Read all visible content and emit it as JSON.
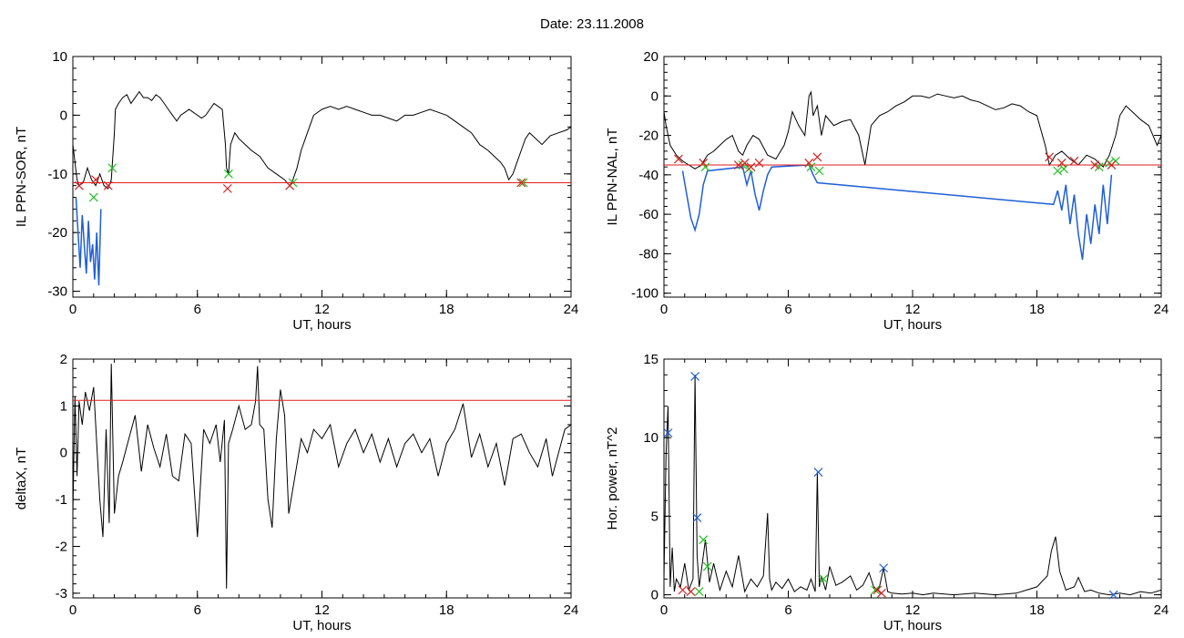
{
  "figure": {
    "title": "Date:  23.11.2008"
  },
  "chart_data": [
    {
      "type": "line",
      "id": "il-sor",
      "ylabel": "IL PPN-SOR, nT",
      "xlabel": "UT, hours",
      "xlim": [
        0,
        24
      ],
      "ylim": [
        -31,
        10
      ],
      "xticks": [
        0,
        6,
        12,
        18,
        24
      ],
      "yticks": [
        -30,
        -20,
        -10,
        0,
        10
      ],
      "threshold": -11.5,
      "series": [
        {
          "color": "#000000",
          "x": [
            0,
            0.1,
            0.2,
            0.3,
            0.5,
            0.7,
            0.9,
            1.1,
            1.3,
            1.5,
            1.7,
            1.85,
            2.0,
            2.05,
            2.2,
            2.4,
            2.6,
            2.8,
            3.0,
            3.2,
            3.4,
            3.6,
            3.8,
            4.0,
            4.2,
            4.4,
            4.6,
            4.8,
            5.0,
            5.2,
            5.4,
            5.6,
            5.8,
            6.0,
            6.2,
            6.4,
            6.6,
            6.8,
            7.0,
            7.2,
            7.35,
            7.4,
            7.5,
            7.6,
            7.8,
            8.0,
            8.3,
            8.6,
            9.0,
            9.4,
            9.8,
            10.2,
            10.45,
            10.6,
            10.8,
            11.0,
            11.3,
            11.6,
            12.0,
            12.4,
            12.8,
            13.2,
            13.6,
            14.0,
            14.4,
            14.8,
            15.2,
            15.6,
            16.0,
            16.4,
            16.8,
            17.2,
            17.6,
            18.0,
            18.4,
            18.8,
            19.2,
            19.6,
            20.0,
            20.3,
            20.6,
            20.8,
            21.0,
            21.2,
            21.4,
            21.6,
            21.8,
            22.0,
            22.3,
            22.6,
            23.0,
            23.4,
            23.8,
            24.0
          ],
          "y": [
            -5,
            -8,
            -11,
            -12,
            -11.5,
            -9,
            -11,
            -12,
            -10,
            -12,
            -12.5,
            -11,
            -3,
            1,
            2,
            3,
            3.5,
            2,
            3,
            4,
            3,
            3,
            2.5,
            3.5,
            3,
            2,
            1,
            0,
            -1,
            0,
            0.5,
            1,
            0.5,
            0,
            -0.5,
            0,
            1,
            2,
            1.5,
            1,
            -5,
            -9,
            -10,
            -5,
            -3,
            -4,
            -5,
            -6,
            -7,
            -9,
            -10,
            -11,
            -12,
            -11,
            -9,
            -6,
            -3,
            0,
            1,
            1.5,
            1,
            1.5,
            1,
            0.5,
            0,
            0,
            -0.5,
            -1,
            0,
            0,
            0.5,
            1,
            0.5,
            0,
            -1,
            -2,
            -3,
            -5,
            -6,
            -7,
            -8,
            -9,
            -11,
            -10,
            -8,
            -6,
            -4,
            -3,
            -4,
            -5,
            -3.5,
            -3,
            -2.5,
            -2
          ]
        },
        {
          "color": "#1f5fd6",
          "x": [
            0.15,
            0.25,
            0.35,
            0.45,
            0.55,
            0.65,
            0.75,
            0.85,
            0.95,
            1.05,
            1.15,
            1.25,
            1.35
          ],
          "y": [
            -14,
            -20,
            -26,
            -17,
            -22,
            -27,
            -18,
            -25,
            -22,
            -28,
            -20,
            -29,
            -16
          ]
        }
      ],
      "markers_red": {
        "x": [
          0.3,
          1.1,
          1.7,
          7.45,
          10.45,
          21.6
        ],
        "y": [
          -12,
          -11,
          -12,
          -12.5,
          -12,
          -11.5
        ]
      },
      "markers_green": {
        "x": [
          1.0,
          1.9,
          7.5,
          10.6,
          21.7
        ],
        "y": [
          -14,
          -9,
          -10,
          -11.5,
          -11.5
        ]
      }
    },
    {
      "type": "line",
      "id": "il-nal",
      "ylabel": "IL PPN-NAL, nT",
      "xlabel": "UT, hours",
      "xlim": [
        0,
        24
      ],
      "ylim": [
        -102,
        20
      ],
      "xticks": [
        0,
        6,
        12,
        18,
        24
      ],
      "yticks": [
        -100,
        -80,
        -60,
        -40,
        -20,
        0,
        20
      ],
      "threshold": -35,
      "series": [
        {
          "color": "#000000",
          "x": [
            0,
            0.1,
            0.3,
            0.6,
            0.9,
            1.2,
            1.5,
            1.8,
            2.1,
            2.4,
            2.7,
            3.0,
            3.3,
            3.6,
            3.8,
            4.0,
            4.3,
            4.6,
            5.0,
            5.4,
            5.8,
            6.0,
            6.2,
            6.5,
            6.8,
            7.0,
            7.1,
            7.2,
            7.4,
            7.6,
            7.8,
            8.2,
            8.6,
            9.0,
            9.4,
            9.7,
            10.0,
            10.4,
            10.8,
            11.2,
            11.6,
            12.0,
            12.4,
            12.8,
            13.2,
            13.6,
            14.0,
            14.4,
            14.8,
            15.2,
            15.6,
            16.0,
            16.4,
            16.8,
            17.2,
            17.6,
            18.0,
            18.4,
            18.6,
            18.9,
            19.2,
            19.6,
            20.0,
            20.4,
            20.8,
            21.2,
            21.5,
            21.8,
            22.0,
            22.3,
            22.6,
            23.0,
            23.4,
            23.8,
            24.0
          ],
          "y": [
            -8,
            -15,
            -25,
            -30,
            -33,
            -35,
            -37,
            -35,
            -30,
            -28,
            -25,
            -22,
            -20,
            -28,
            -30,
            -25,
            -20,
            -22,
            -30,
            -32,
            -25,
            -18,
            -8,
            -15,
            -20,
            0,
            2,
            -10,
            -5,
            -20,
            -10,
            -15,
            -13,
            -12,
            -20,
            -35,
            -15,
            -10,
            -8,
            -5,
            -3,
            0,
            0,
            -1,
            1,
            0,
            -1,
            0,
            -2,
            -3,
            -5,
            -7,
            -6,
            -4,
            -5,
            -8,
            -10,
            -25,
            -35,
            -30,
            -28,
            -32,
            -35,
            -30,
            -32,
            -36,
            -30,
            -20,
            -10,
            -5,
            -8,
            -12,
            -15,
            -25,
            -20
          ]
        },
        {
          "color": "#1f5fd6",
          "x": [
            0.9,
            1.1,
            1.3,
            1.5,
            1.7,
            1.9,
            2.1,
            3.8,
            4.0,
            4.2,
            4.4,
            4.6,
            4.8,
            5.0,
            5.2,
            7.0,
            7.2,
            7.4,
            18.8,
            19.0,
            19.2,
            19.4,
            19.6,
            19.8,
            20.0,
            20.2,
            20.4,
            20.6,
            20.8,
            21.0,
            21.2,
            21.4,
            21.6
          ],
          "y": [
            -38,
            -50,
            -62,
            -68,
            -60,
            -45,
            -38,
            -36,
            -45,
            -38,
            -50,
            -58,
            -48,
            -40,
            -36,
            -35,
            -40,
            -44,
            -55,
            -48,
            -58,
            -45,
            -65,
            -50,
            -70,
            -83,
            -60,
            -75,
            -55,
            -70,
            -45,
            -65,
            -40
          ]
        }
      ],
      "markers_red": {
        "x": [
          0.7,
          1.9,
          3.6,
          3.9,
          4.2,
          4.6,
          7.0,
          7.4,
          18.6,
          19.2,
          19.8,
          20.8,
          21.6
        ],
        "y": [
          -32,
          -34,
          -35,
          -34,
          -36,
          -34,
          -34,
          -31,
          -31,
          -34,
          -33,
          -35,
          -35
        ]
      },
      "markers_green": {
        "x": [
          2.0,
          3.8,
          4.1,
          7.1,
          7.5,
          19.0,
          19.3,
          21.0,
          21.5,
          21.8
        ],
        "y": [
          -36,
          -35,
          -37,
          -36,
          -38,
          -38,
          -37,
          -36,
          -34,
          -33
        ]
      }
    },
    {
      "type": "line",
      "id": "delta-x",
      "ylabel": "deltaX, nT",
      "xlabel": "UT, hours",
      "xlim": [
        0,
        24
      ],
      "ylim": [
        -3.1,
        2
      ],
      "xticks": [
        0,
        6,
        12,
        18,
        24
      ],
      "yticks": [
        -3,
        -2,
        -1,
        0,
        1,
        2
      ],
      "threshold": 1.12,
      "series": [
        {
          "color": "#000000",
          "x": [
            0,
            0.1,
            0.2,
            0.3,
            0.45,
            0.6,
            0.8,
            1.0,
            1.15,
            1.3,
            1.45,
            1.6,
            1.75,
            1.85,
            2.0,
            2.2,
            2.4,
            2.7,
            3.0,
            3.3,
            3.6,
            3.9,
            4.2,
            4.5,
            4.8,
            5.1,
            5.4,
            5.7,
            6.0,
            6.3,
            6.6,
            6.9,
            7.1,
            7.3,
            7.4,
            7.5,
            7.7,
            8.0,
            8.3,
            8.6,
            8.8,
            8.9,
            9.0,
            9.2,
            9.4,
            9.6,
            9.8,
            10.0,
            10.2,
            10.4,
            10.7,
            11.0,
            11.3,
            11.6,
            12.0,
            12.4,
            12.8,
            13.2,
            13.6,
            14.0,
            14.4,
            14.8,
            15.2,
            15.6,
            16.0,
            16.4,
            16.8,
            17.2,
            17.6,
            18.0,
            18.4,
            18.8,
            19.2,
            19.6,
            20.0,
            20.4,
            20.8,
            21.2,
            21.6,
            22.0,
            22.4,
            22.8,
            23.1,
            23.4,
            23.7,
            24.0
          ],
          "y": [
            -1.3,
            1.2,
            -0.5,
            1.1,
            0.6,
            1.3,
            0.9,
            1.4,
            0.2,
            -1.0,
            -1.8,
            0.5,
            -1.5,
            1.9,
            -1.3,
            -0.5,
            -0.2,
            0.3,
            0.8,
            -0.4,
            0.6,
            0.1,
            -0.3,
            0.4,
            -0.5,
            -0.6,
            0.4,
            0.2,
            -1.8,
            0.5,
            0.2,
            0.6,
            -0.2,
            0.7,
            -2.9,
            0.2,
            0.5,
            1.0,
            0.5,
            0.6,
            1.1,
            1.85,
            0.6,
            0.5,
            -1.0,
            -1.6,
            0.3,
            1.35,
            0.8,
            -1.3,
            -0.5,
            0.3,
            0.0,
            0.5,
            0.3,
            0.6,
            -0.3,
            0.2,
            0.5,
            0.0,
            0.4,
            -0.2,
            0.3,
            -0.3,
            0.2,
            0.4,
            0.0,
            0.3,
            -0.5,
            0.2,
            0.5,
            1.05,
            -0.1,
            0.4,
            -0.3,
            0.2,
            -0.7,
            0.3,
            0.4,
            0.0,
            -0.3,
            0.3,
            -0.5,
            0.0,
            0.5,
            0.6
          ]
        }
      ]
    },
    {
      "type": "line",
      "id": "hor-power",
      "ylabel": "Hor. power, nT^2",
      "xlabel": "UT, hours",
      "xlim": [
        0,
        24
      ],
      "ylim": [
        -0.2,
        15
      ],
      "xticks": [
        0,
        6,
        12,
        18,
        24
      ],
      "yticks": [
        0,
        5,
        10,
        15
      ],
      "series": [
        {
          "color": "#000000",
          "x": [
            0,
            0.1,
            0.2,
            0.3,
            0.4,
            0.5,
            0.6,
            0.8,
            1.0,
            1.2,
            1.4,
            1.5,
            1.6,
            1.7,
            1.8,
            2.0,
            2.2,
            2.4,
            2.7,
            3.0,
            3.3,
            3.6,
            3.9,
            4.2,
            4.5,
            4.8,
            5.0,
            5.1,
            5.2,
            5.4,
            5.7,
            6.0,
            6.3,
            6.6,
            6.9,
            7.1,
            7.3,
            7.4,
            7.5,
            7.6,
            7.8,
            8.0,
            8.3,
            8.6,
            9.0,
            9.3,
            9.6,
            9.9,
            10.2,
            10.4,
            10.6,
            10.8,
            11.0,
            11.5,
            12.0,
            12.5,
            13.0,
            14.0,
            15.0,
            16.0,
            17.0,
            17.5,
            18.0,
            18.5,
            18.7,
            18.9,
            19.1,
            19.4,
            19.8,
            20.0,
            20.3,
            20.6,
            21.0,
            21.5,
            22.0,
            22.5,
            23.0,
            23.5,
            24.0
          ],
          "y": [
            1.0,
            9.0,
            12.0,
            0.5,
            3.0,
            0.2,
            1.0,
            0.5,
            2.0,
            0.3,
            1.0,
            14.0,
            2.5,
            0.5,
            1.5,
            3.5,
            0.8,
            2.0,
            0.3,
            1.5,
            0.5,
            2.5,
            0.2,
            1.0,
            0.5,
            1.2,
            5.2,
            1.0,
            0.3,
            0.8,
            0.4,
            1.0,
            0.2,
            0.5,
            0.3,
            1.0,
            0.2,
            7.8,
            0.5,
            1.2,
            0.3,
            1.8,
            0.6,
            0.8,
            1.2,
            0.3,
            0.6,
            1.4,
            0.2,
            0.5,
            1.7,
            0.2,
            0.1,
            0.05,
            0.1,
            0.0,
            0.1,
            0.0,
            0.1,
            0.0,
            0.1,
            0.3,
            0.5,
            1.2,
            2.8,
            3.7,
            1.5,
            0.3,
            0.5,
            1.1,
            0.2,
            0.3,
            0.1,
            0.0,
            0.1,
            0.0,
            0.2,
            0.1,
            0.3
          ]
        }
      ],
      "markers_blue": {
        "x": [
          0.2,
          1.5,
          1.6,
          7.45,
          10.6,
          21.7
        ],
        "y": [
          10.3,
          13.9,
          4.9,
          7.8,
          1.7,
          0.0
        ]
      },
      "markers_green": {
        "x": [
          1.7,
          1.9,
          2.1,
          7.7,
          10.2
        ],
        "y": [
          0.2,
          3.5,
          1.8,
          1.0,
          0.3
        ]
      },
      "markers_red": {
        "x": [
          0.9,
          1.3,
          10.3,
          10.5
        ],
        "y": [
          0.3,
          0.2,
          0.3,
          0.1
        ]
      }
    }
  ]
}
